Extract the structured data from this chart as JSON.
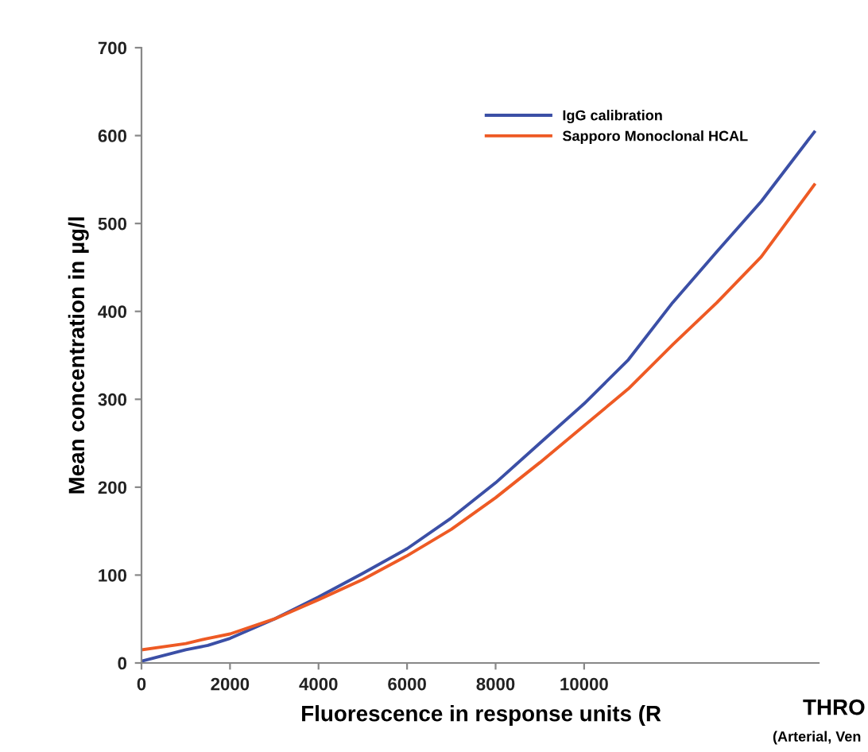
{
  "chart_data": {
    "type": "line",
    "xlabel": "Fluorescence in response units (R",
    "ylabel": "Mean concentration in µg/l",
    "x": [
      0,
      1000,
      1500,
      2000,
      3000,
      4000,
      5000,
      6000,
      7000,
      8000,
      9000,
      10000,
      11000,
      12000,
      13000,
      14000,
      15200
    ],
    "series": [
      {
        "name": "IgG calibration",
        "color": "#3b4fa6",
        "values": [
          2,
          15,
          20,
          28,
          50,
          75,
          102,
          130,
          165,
          205,
          250,
          295,
          345,
          410,
          468,
          525,
          604
        ]
      },
      {
        "name": "Sapporo Monoclonal HCAL",
        "color": "#ee5a24",
        "values": [
          15,
          22,
          28,
          33,
          50,
          72,
          95,
          122,
          152,
          188,
          228,
          270,
          312,
          362,
          410,
          462,
          544
        ]
      }
    ],
    "xlim": [
      0,
      15300
    ],
    "xticks": [
      0,
      2000,
      4000,
      6000,
      8000,
      10000
    ],
    "ylim": [
      0,
      700
    ],
    "yticks": [
      0,
      100,
      200,
      300,
      400,
      500,
      600,
      700
    ],
    "grid": false,
    "legend": "top right",
    "marker": "none",
    "line_style": "solid",
    "annotations": [
      "THRO",
      "(Arterial, Ven"
    ]
  }
}
